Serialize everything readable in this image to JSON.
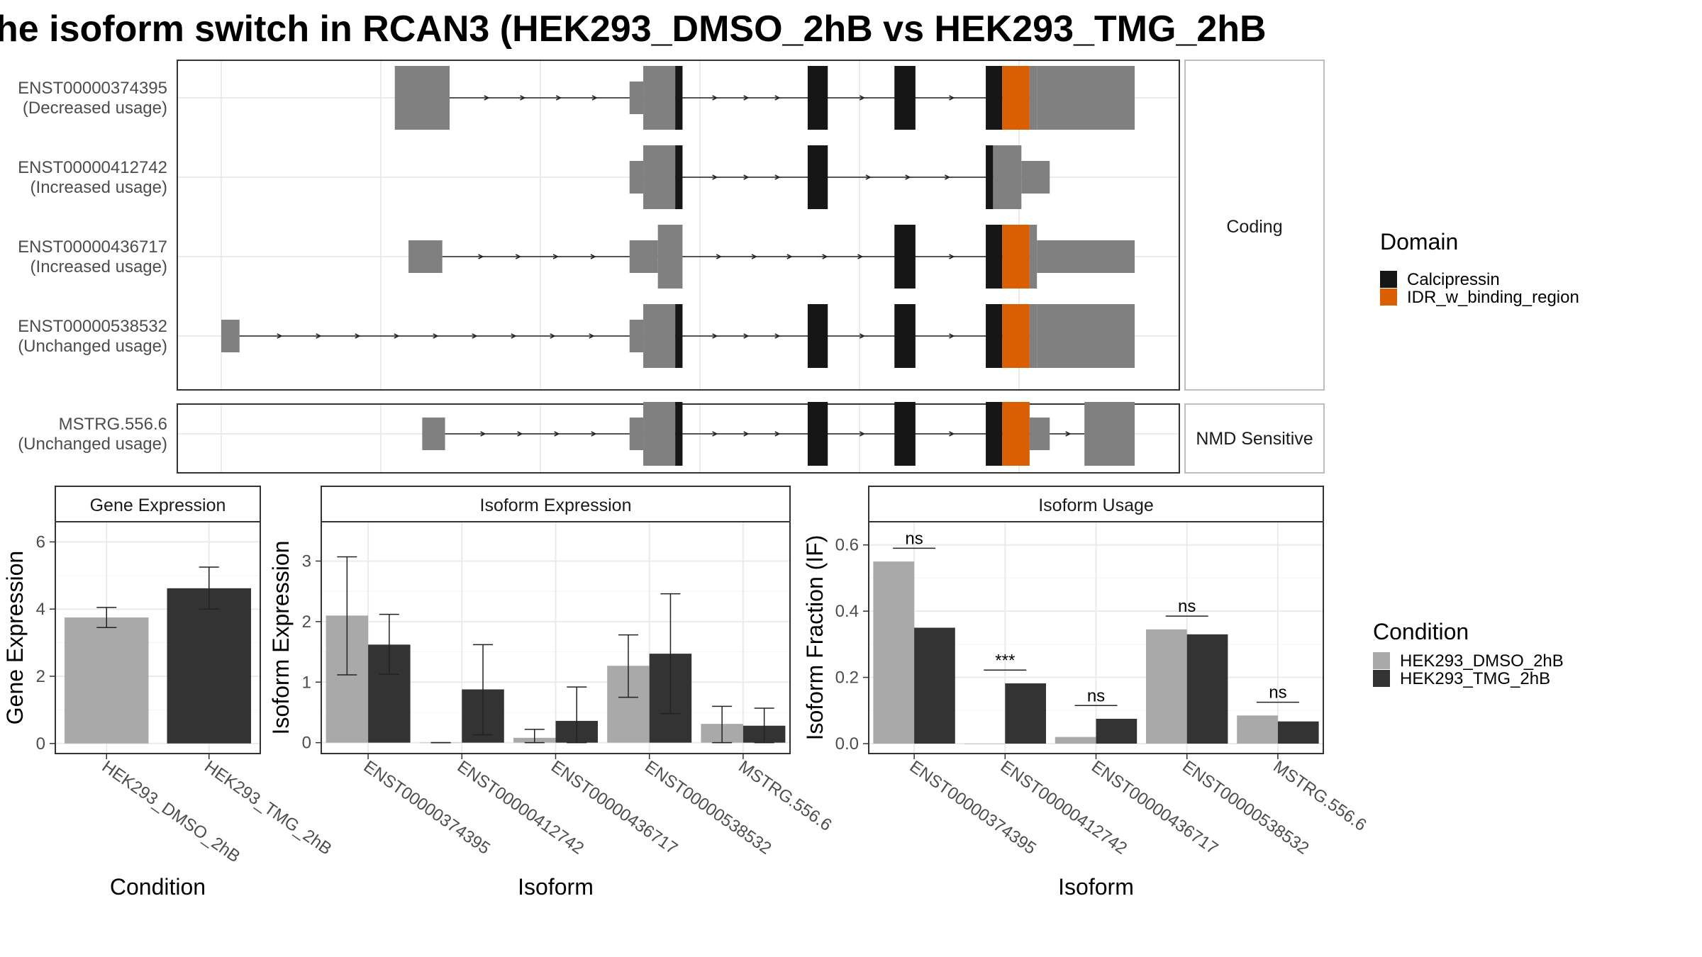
{
  "title": "he isoform switch in RCAN3 (HEK293_DMSO_2hB vs HEK293_TMG_2hB",
  "colors": {
    "cond1": "#a9a9a9",
    "cond2": "#333333",
    "calcipressin": "#161616",
    "idr": "#d95f02",
    "exon": "#808080",
    "frame": "#333333",
    "strip_border": "#bdbdbd",
    "grid": "#ebebeb"
  },
  "structure": {
    "strip_coding": "Coding",
    "strip_nmd": "NMD Sensitive",
    "transcripts": [
      {
        "id": "ENST00000374395",
        "usage": "(Decreased usage)",
        "panel": "coding",
        "blocks": [
          {
            "s": 0.19,
            "e": 0.25,
            "t": "exon",
            "h": "full"
          },
          {
            "s": 0.447,
            "e": 0.462,
            "t": "exon",
            "h": "mid"
          },
          {
            "s": 0.462,
            "e": 0.497,
            "t": "exon",
            "h": "full"
          },
          {
            "s": 0.497,
            "e": 0.505,
            "t": "calcipressin",
            "h": "full"
          },
          {
            "s": 0.642,
            "e": 0.664,
            "t": "calcipressin",
            "h": "full"
          },
          {
            "s": 0.737,
            "e": 0.76,
            "t": "calcipressin",
            "h": "full"
          },
          {
            "s": 0.837,
            "e": 0.855,
            "t": "calcipressin",
            "h": "full"
          },
          {
            "s": 0.855,
            "e": 0.885,
            "t": "idr",
            "h": "full"
          },
          {
            "s": 0.885,
            "e": 0.893,
            "t": "exon",
            "h": "full"
          },
          {
            "s": 0.893,
            "e": 1.0,
            "t": "exon",
            "h": "full"
          }
        ]
      },
      {
        "id": "ENST00000412742",
        "usage": "(Increased usage)",
        "panel": "coding",
        "blocks": [
          {
            "s": 0.447,
            "e": 0.462,
            "t": "exon",
            "h": "mid"
          },
          {
            "s": 0.462,
            "e": 0.497,
            "t": "exon",
            "h": "full"
          },
          {
            "s": 0.497,
            "e": 0.505,
            "t": "calcipressin",
            "h": "full"
          },
          {
            "s": 0.642,
            "e": 0.664,
            "t": "calcipressin",
            "h": "full"
          },
          {
            "s": 0.837,
            "e": 0.845,
            "t": "calcipressin",
            "h": "full"
          },
          {
            "s": 0.845,
            "e": 0.876,
            "t": "exon",
            "h": "full"
          },
          {
            "s": 0.876,
            "e": 0.907,
            "t": "exon",
            "h": "mid"
          }
        ]
      },
      {
        "id": "ENST00000436717",
        "usage": "(Increased usage)",
        "panel": "coding",
        "blocks": [
          {
            "s": 0.205,
            "e": 0.242,
            "t": "exon",
            "h": "mid"
          },
          {
            "s": 0.447,
            "e": 0.478,
            "t": "exon",
            "h": "mid"
          },
          {
            "s": 0.478,
            "e": 0.505,
            "t": "exon",
            "h": "full"
          },
          {
            "s": 0.737,
            "e": 0.76,
            "t": "calcipressin",
            "h": "full"
          },
          {
            "s": 0.837,
            "e": 0.855,
            "t": "calcipressin",
            "h": "full"
          },
          {
            "s": 0.855,
            "e": 0.885,
            "t": "idr",
            "h": "full"
          },
          {
            "s": 0.885,
            "e": 0.893,
            "t": "exon",
            "h": "full"
          },
          {
            "s": 0.893,
            "e": 1.0,
            "t": "exon",
            "h": "mid"
          }
        ]
      },
      {
        "id": "ENST00000538532",
        "usage": "(Unchanged usage)",
        "panel": "coding",
        "blocks": [
          {
            "s": 0.0,
            "e": 0.02,
            "t": "exon",
            "h": "mid"
          },
          {
            "s": 0.447,
            "e": 0.462,
            "t": "exon",
            "h": "mid"
          },
          {
            "s": 0.462,
            "e": 0.497,
            "t": "exon",
            "h": "full"
          },
          {
            "s": 0.497,
            "e": 0.505,
            "t": "calcipressin",
            "h": "full"
          },
          {
            "s": 0.642,
            "e": 0.664,
            "t": "calcipressin",
            "h": "full"
          },
          {
            "s": 0.737,
            "e": 0.76,
            "t": "calcipressin",
            "h": "full"
          },
          {
            "s": 0.837,
            "e": 0.855,
            "t": "calcipressin",
            "h": "full"
          },
          {
            "s": 0.855,
            "e": 0.885,
            "t": "idr",
            "h": "full"
          },
          {
            "s": 0.885,
            "e": 0.893,
            "t": "exon",
            "h": "full"
          },
          {
            "s": 0.893,
            "e": 1.0,
            "t": "exon",
            "h": "full"
          }
        ]
      },
      {
        "id": "MSTRG.556.6",
        "usage": "(Unchanged usage)",
        "panel": "nmd",
        "blocks": [
          {
            "s": 0.22,
            "e": 0.245,
            "t": "exon",
            "h": "mid"
          },
          {
            "s": 0.447,
            "e": 0.462,
            "t": "exon",
            "h": "mid"
          },
          {
            "s": 0.462,
            "e": 0.497,
            "t": "exon",
            "h": "full"
          },
          {
            "s": 0.497,
            "e": 0.505,
            "t": "calcipressin",
            "h": "full"
          },
          {
            "s": 0.642,
            "e": 0.664,
            "t": "calcipressin",
            "h": "full"
          },
          {
            "s": 0.737,
            "e": 0.76,
            "t": "calcipressin",
            "h": "full"
          },
          {
            "s": 0.837,
            "e": 0.855,
            "t": "calcipressin",
            "h": "full"
          },
          {
            "s": 0.855,
            "e": 0.885,
            "t": "idr",
            "h": "full"
          },
          {
            "s": 0.885,
            "e": 0.907,
            "t": "exon",
            "h": "mid"
          },
          {
            "s": 0.945,
            "e": 1.0,
            "t": "exon",
            "h": "full"
          }
        ]
      }
    ]
  },
  "legend_domain": {
    "title": "Domain",
    "items": [
      {
        "label": "Calcipressin",
        "key": "calcipressin"
      },
      {
        "label": "IDR_w_binding_region",
        "key": "idr"
      }
    ]
  },
  "legend_condition": {
    "title": "Condition",
    "items": [
      {
        "label": "HEK293_DMSO_2hB",
        "key": "cond1"
      },
      {
        "label": "HEK293_TMG_2hB",
        "key": "cond2"
      }
    ]
  },
  "chart_data": [
    {
      "type": "bar",
      "title": "Gene Expression",
      "xlabel": "Condition",
      "ylabel": "Gene Expression",
      "categories": [
        "HEK293_DMSO_2hB",
        "HEK293_TMG_2hB"
      ],
      "values": [
        3.75,
        4.62
      ],
      "errors": [
        [
          3.45,
          4.05
        ],
        [
          4.0,
          5.25
        ]
      ],
      "ylim": [
        -0.3,
        6.6
      ],
      "yticks": [
        0,
        2,
        4,
        6
      ]
    },
    {
      "type": "bar",
      "title": "Isoform Expression",
      "xlabel": "Isoform",
      "ylabel": "Isoform Expression",
      "categories": [
        "ENST00000374395",
        "ENST00000412742",
        "ENST00000436717",
        "ENST00000538532",
        "MSTRG.556.6"
      ],
      "series": [
        {
          "name": "HEK293_DMSO_2hB",
          "values": [
            2.1,
            0.0,
            0.08,
            1.27,
            0.31
          ],
          "errors": [
            [
              1.12,
              3.07
            ],
            [
              0.0,
              0.0
            ],
            [
              0.0,
              0.22
            ],
            [
              0.75,
              1.78
            ],
            [
              0.0,
              0.6
            ]
          ]
        },
        {
          "name": "HEK293_TMG_2hB",
          "values": [
            1.62,
            0.88,
            0.36,
            1.47,
            0.28
          ],
          "errors": [
            [
              1.13,
              2.12
            ],
            [
              0.13,
              1.62
            ],
            [
              0.0,
              0.92
            ],
            [
              0.48,
              2.46
            ],
            [
              0.0,
              0.57
            ]
          ]
        }
      ],
      "ylim": [
        -0.18,
        3.65
      ],
      "yticks": [
        0,
        1,
        2,
        3
      ]
    },
    {
      "type": "bar",
      "title": "Isoform Usage",
      "xlabel": "Isoform",
      "ylabel": "Isoform Fraction (IF)",
      "categories": [
        "ENST00000374395",
        "ENST00000412742",
        "ENST00000436717",
        "ENST00000538532",
        "MSTRG.556.6"
      ],
      "series": [
        {
          "name": "HEK293_DMSO_2hB",
          "values": [
            0.55,
            0.0,
            0.02,
            0.345,
            0.085
          ]
        },
        {
          "name": "HEK293_TMG_2hB",
          "values": [
            0.35,
            0.182,
            0.075,
            0.33,
            0.067
          ]
        }
      ],
      "annotations": [
        "ns",
        "***",
        "ns",
        "ns",
        "ns"
      ],
      "ylim": [
        -0.03,
        0.67
      ],
      "yticks": [
        0.0,
        0.2,
        0.4,
        0.6
      ],
      "ytick_labels": [
        "0.0",
        "0.2",
        "0.4",
        "0.6"
      ]
    }
  ]
}
